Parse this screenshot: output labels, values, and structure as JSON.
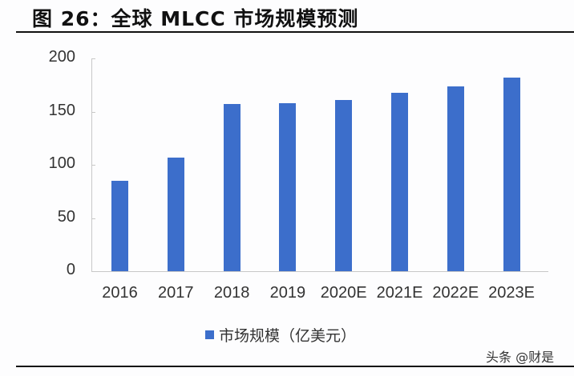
{
  "header": {
    "title": "图 26：全球 MLCC 市场规模预测"
  },
  "watermark": "头条 @财是",
  "colors": {
    "bar": "#3c6ecb",
    "axis": "#c8c8c8",
    "text": "#333333"
  },
  "chart_data": {
    "type": "bar",
    "title": "图 26：全球 MLCC 市场规模预测",
    "xlabel": "",
    "ylabel": "",
    "ylim": [
      0,
      200
    ],
    "yticks": [
      "0",
      "50",
      "100",
      "150",
      "200"
    ],
    "categories": [
      "2016",
      "2017",
      "2018",
      "2019",
      "2020E",
      "2021E",
      "2022E",
      "2023E"
    ],
    "series": [
      {
        "name": "市场规模（亿美元）",
        "values": [
          85,
          107,
          157,
          158,
          161,
          168,
          174,
          182
        ]
      }
    ],
    "legend_position": "bottom",
    "grid": false
  }
}
